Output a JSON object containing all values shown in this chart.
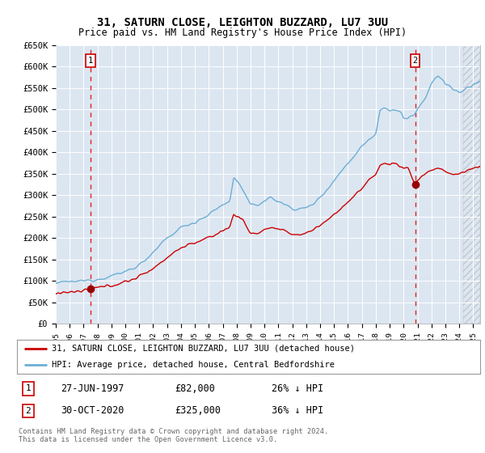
{
  "title1": "31, SATURN CLOSE, LEIGHTON BUZZARD, LU7 3UU",
  "title2": "Price paid vs. HM Land Registry's House Price Index (HPI)",
  "bg_color": "#dce6f1",
  "hpi_color": "#6baed6",
  "price_color": "#cc0000",
  "marker_color": "#990000",
  "grid_color": "#ffffff",
  "ylim": [
    0,
    650000
  ],
  "yticks": [
    0,
    50000,
    100000,
    150000,
    200000,
    250000,
    300000,
    350000,
    400000,
    450000,
    500000,
    550000,
    600000,
    650000
  ],
  "ytick_labels": [
    "£0",
    "£50K",
    "£100K",
    "£150K",
    "£200K",
    "£250K",
    "£300K",
    "£350K",
    "£400K",
    "£450K",
    "£500K",
    "£550K",
    "£600K",
    "£650K"
  ],
  "sale1_date": 1997.49,
  "sale1_price": 82000,
  "sale2_date": 2020.83,
  "sale2_price": 325000,
  "legend_line1": "31, SATURN CLOSE, LEIGHTON BUZZARD, LU7 3UU (detached house)",
  "legend_line2": "HPI: Average price, detached house, Central Bedfordshire",
  "annotation1_label": "1",
  "annotation1_date": "27-JUN-1997",
  "annotation1_price": "£82,000",
  "annotation1_hpi": "26% ↓ HPI",
  "annotation2_label": "2",
  "annotation2_date": "30-OCT-2020",
  "annotation2_price": "£325,000",
  "annotation2_hpi": "36% ↓ HPI",
  "footer": "Contains HM Land Registry data © Crown copyright and database right 2024.\nThis data is licensed under the Open Government Licence v3.0.",
  "xmin": 1995.0,
  "xmax": 2025.5
}
